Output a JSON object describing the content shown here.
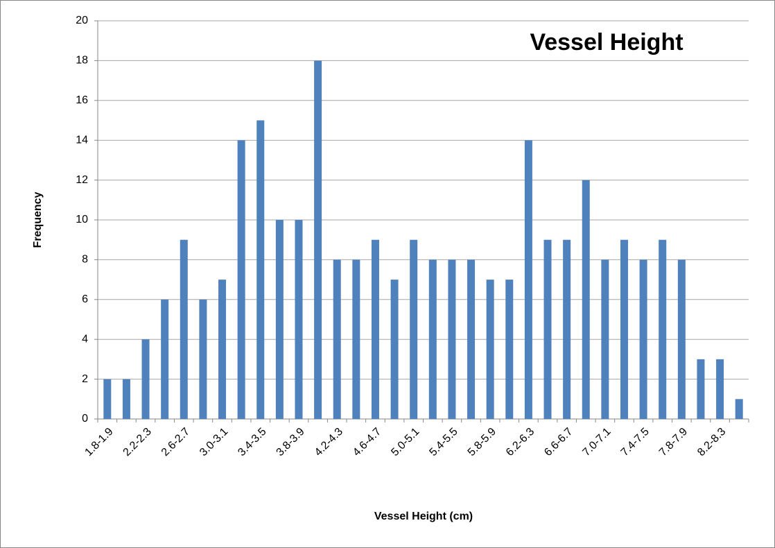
{
  "chart_data": {
    "type": "bar",
    "title": "Vessel Height",
    "xlabel": "Vessel Height (cm)",
    "ylabel": "Frequency",
    "categories": [
      "1.8-1.9",
      null,
      "2.2-2.3",
      null,
      "2.6-2.7",
      null,
      "3.0-3.1",
      null,
      "3.4-3.5",
      null,
      "3.8-3.9",
      null,
      "4.2-4.3",
      null,
      "4.6-4.7",
      null,
      "5.0-5.1",
      null,
      "5.4-5.5",
      null,
      "5.8-5.9",
      null,
      "6.2-6.3",
      null,
      "6.6-6.7",
      null,
      "7.0-7.1",
      null,
      "7.4-7.5",
      null,
      "7.8-7.9",
      null,
      "8.2-8.3",
      null
    ],
    "values": [
      2,
      2,
      4,
      6,
      9,
      6,
      7,
      14,
      15,
      10,
      10,
      18,
      8,
      8,
      9,
      7,
      9,
      8,
      8,
      8,
      7,
      7,
      14,
      9,
      9,
      12,
      8,
      9,
      8,
      9,
      8,
      3,
      3,
      1
    ],
    "color": "#4f81bd",
    "ylim": [
      0,
      20
    ],
    "yticks": [
      0,
      2,
      4,
      6,
      8,
      10,
      12,
      14,
      16,
      18,
      20
    ],
    "grid": true
  }
}
